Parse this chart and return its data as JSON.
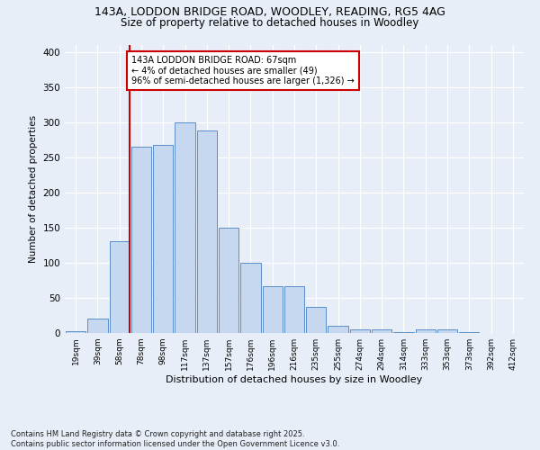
{
  "title_line1": "143A, LODDON BRIDGE ROAD, WOODLEY, READING, RG5 4AG",
  "title_line2": "Size of property relative to detached houses in Woodley",
  "xlabel": "Distribution of detached houses by size in Woodley",
  "ylabel": "Number of detached properties",
  "bar_labels": [
    "19sqm",
    "39sqm",
    "58sqm",
    "78sqm",
    "98sqm",
    "117sqm",
    "137sqm",
    "157sqm",
    "176sqm",
    "196sqm",
    "216sqm",
    "235sqm",
    "255sqm",
    "274sqm",
    "294sqm",
    "314sqm",
    "333sqm",
    "353sqm",
    "373sqm",
    "392sqm",
    "412sqm"
  ],
  "bar_values": [
    2,
    21,
    131,
    265,
    268,
    300,
    288,
    150,
    100,
    67,
    67,
    37,
    10,
    5,
    5,
    1,
    5,
    5,
    1,
    0,
    0
  ],
  "bar_color": "#c5d8f0",
  "bar_edge_color": "#5b8fc9",
  "vline_x": 2,
  "vline_color": "#cc0000",
  "annotation_text": "143A LODDON BRIDGE ROAD: 67sqm\n← 4% of detached houses are smaller (49)\n96% of semi-detached houses are larger (1,326) →",
  "annotation_box_color": "#ffffff",
  "annotation_box_edge": "#cc0000",
  "ylim": [
    0,
    410
  ],
  "yticks": [
    0,
    50,
    100,
    150,
    200,
    250,
    300,
    350,
    400
  ],
  "background_color": "#e8eef8",
  "grid_color": "#ffffff",
  "footnote": "Contains HM Land Registry data © Crown copyright and database right 2025.\nContains public sector information licensed under the Open Government Licence v3.0."
}
